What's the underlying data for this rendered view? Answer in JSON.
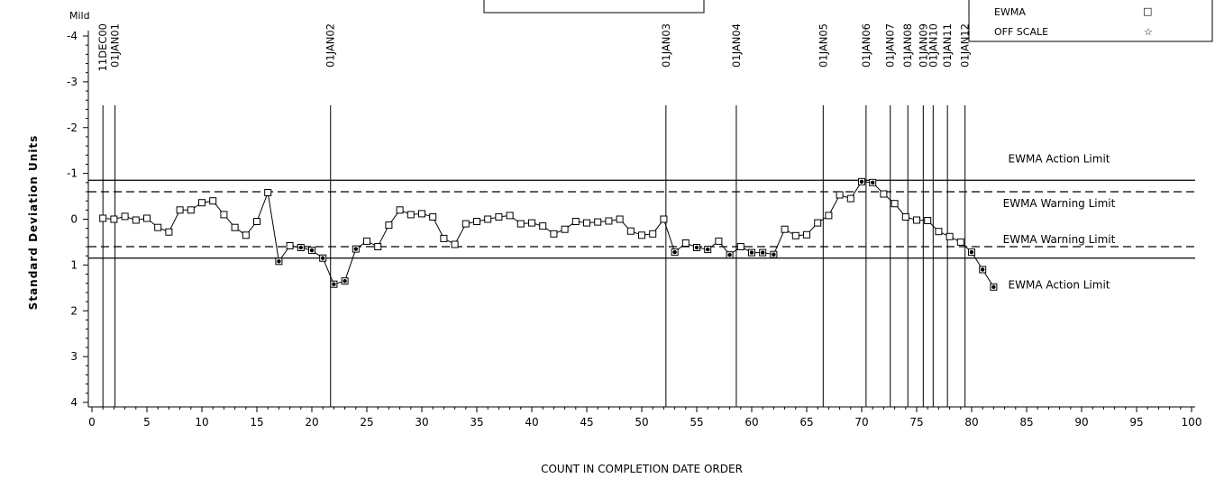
{
  "chart_data": {
    "type": "line",
    "title": "",
    "xlabel": "COUNT IN COMPLETION DATE ORDER",
    "ylabel": "Standard Deviation Units",
    "y_unit_label": "Mild",
    "xlim": [
      0,
      100
    ],
    "ylim": [
      -4,
      4
    ],
    "y_axis_inverted": true,
    "x_ticks": [
      0,
      5,
      10,
      15,
      20,
      25,
      30,
      35,
      40,
      45,
      50,
      55,
      60,
      65,
      70,
      75,
      80,
      85,
      90,
      95,
      100
    ],
    "y_ticks": [
      -4,
      -3,
      -2,
      -1,
      0,
      1,
      2,
      3,
      4
    ],
    "grid": false,
    "legend": {
      "placement": "top-right",
      "entries": [
        {
          "label": "EWMA",
          "symbol": "□",
          "marker": "square"
        },
        {
          "label": "OFF SCALE",
          "symbol": "☆",
          "marker": "star"
        }
      ]
    },
    "limits": [
      {
        "label": "EWMA Action Limit",
        "value": -0.85,
        "style": "solid"
      },
      {
        "label": "EWMA Warning Limit",
        "value": -0.6,
        "style": "dashed"
      },
      {
        "label": "EWMA Warning Limit",
        "value": 0.6,
        "style": "dashed"
      },
      {
        "label": "EWMA Action Limit",
        "value": 0.85,
        "style": "solid"
      }
    ],
    "date_markers": [
      {
        "x": 1,
        "label": "11DEC00"
      },
      {
        "x": 2.1,
        "label": "01JAN01"
      },
      {
        "x": 21.7,
        "label": "01JAN02"
      },
      {
        "x": 52.2,
        "label": "01JAN03"
      },
      {
        "x": 58.6,
        "label": "01JAN04"
      },
      {
        "x": 66.5,
        "label": "01JAN05"
      },
      {
        "x": 70.4,
        "label": "01JAN06"
      },
      {
        "x": 72.6,
        "label": "01JAN07"
      },
      {
        "x": 74.2,
        "label": "01JAN08"
      },
      {
        "x": 75.6,
        "label": "01JAN09"
      },
      {
        "x": 76.5,
        "label": "01JAN10"
      },
      {
        "x": 77.8,
        "label": "01JAN11"
      },
      {
        "x": 79.4,
        "label": "01JAN12"
      }
    ],
    "series": [
      {
        "name": "EWMA",
        "marker": "square",
        "points": [
          {
            "x": 1,
            "y": -0.02
          },
          {
            "x": 2,
            "y": 0.0
          },
          {
            "x": 3,
            "y": -0.06
          },
          {
            "x": 4,
            "y": 0.02
          },
          {
            "x": 5,
            "y": -0.02
          },
          {
            "x": 6,
            "y": 0.18
          },
          {
            "x": 7,
            "y": 0.28
          },
          {
            "x": 8,
            "y": -0.2
          },
          {
            "x": 9,
            "y": -0.2
          },
          {
            "x": 10,
            "y": -0.36
          },
          {
            "x": 11,
            "y": -0.4
          },
          {
            "x": 12,
            "y": -0.1
          },
          {
            "x": 13,
            "y": 0.18
          },
          {
            "x": 14,
            "y": 0.35
          },
          {
            "x": 15,
            "y": 0.05
          },
          {
            "x": 16,
            "y": -0.58
          },
          {
            "x": 17,
            "y": 0.92
          },
          {
            "x": 18,
            "y": 0.58
          },
          {
            "x": 19,
            "y": 0.62
          },
          {
            "x": 20,
            "y": 0.68
          },
          {
            "x": 21,
            "y": 0.85
          },
          {
            "x": 22,
            "y": 1.42
          },
          {
            "x": 23,
            "y": 1.35
          },
          {
            "x": 24,
            "y": 0.65
          },
          {
            "x": 25,
            "y": 0.48
          },
          {
            "x": 26,
            "y": 0.6
          },
          {
            "x": 27,
            "y": 0.13
          },
          {
            "x": 28,
            "y": -0.2
          },
          {
            "x": 29,
            "y": -0.1
          },
          {
            "x": 30,
            "y": -0.12
          },
          {
            "x": 31,
            "y": -0.05
          },
          {
            "x": 32,
            "y": 0.42
          },
          {
            "x": 33,
            "y": 0.55
          },
          {
            "x": 34,
            "y": 0.1
          },
          {
            "x": 35,
            "y": 0.05
          },
          {
            "x": 36,
            "y": 0.0
          },
          {
            "x": 37,
            "y": -0.05
          },
          {
            "x": 38,
            "y": -0.08
          },
          {
            "x": 39,
            "y": 0.1
          },
          {
            "x": 40,
            "y": 0.08
          },
          {
            "x": 41,
            "y": 0.15
          },
          {
            "x": 42,
            "y": 0.32
          },
          {
            "x": 43,
            "y": 0.22
          },
          {
            "x": 44,
            "y": 0.05
          },
          {
            "x": 45,
            "y": 0.08
          },
          {
            "x": 46,
            "y": 0.06
          },
          {
            "x": 47,
            "y": 0.04
          },
          {
            "x": 48,
            "y": 0.0
          },
          {
            "x": 49,
            "y": 0.26
          },
          {
            "x": 50,
            "y": 0.35
          },
          {
            "x": 51,
            "y": 0.32
          },
          {
            "x": 52,
            "y": 0.0
          },
          {
            "x": 53,
            "y": 0.72
          },
          {
            "x": 54,
            "y": 0.52
          },
          {
            "x": 55,
            "y": 0.62
          },
          {
            "x": 56,
            "y": 0.66
          },
          {
            "x": 57,
            "y": 0.48
          },
          {
            "x": 58,
            "y": 0.78
          },
          {
            "x": 59,
            "y": 0.6
          },
          {
            "x": 60,
            "y": 0.73
          },
          {
            "x": 61,
            "y": 0.73
          },
          {
            "x": 62,
            "y": 0.77
          },
          {
            "x": 63,
            "y": 0.22
          },
          {
            "x": 64,
            "y": 0.36
          },
          {
            "x": 65,
            "y": 0.34
          },
          {
            "x": 66,
            "y": 0.08
          },
          {
            "x": 67,
            "y": -0.08
          },
          {
            "x": 68,
            "y": -0.53
          },
          {
            "x": 69,
            "y": -0.45
          },
          {
            "x": 70,
            "y": -0.82
          },
          {
            "x": 71,
            "y": -0.8
          },
          {
            "x": 72,
            "y": -0.55
          },
          {
            "x": 73,
            "y": -0.34
          },
          {
            "x": 74,
            "y": -0.05
          },
          {
            "x": 75,
            "y": 0.02
          },
          {
            "x": 76,
            "y": 0.03
          },
          {
            "x": 77,
            "y": 0.27
          },
          {
            "x": 78,
            "y": 0.38
          },
          {
            "x": 79,
            "y": 0.5
          },
          {
            "x": 80,
            "y": 0.72
          },
          {
            "x": 81,
            "y": 1.1
          },
          {
            "x": 82,
            "y": 1.48
          }
        ]
      }
    ]
  }
}
